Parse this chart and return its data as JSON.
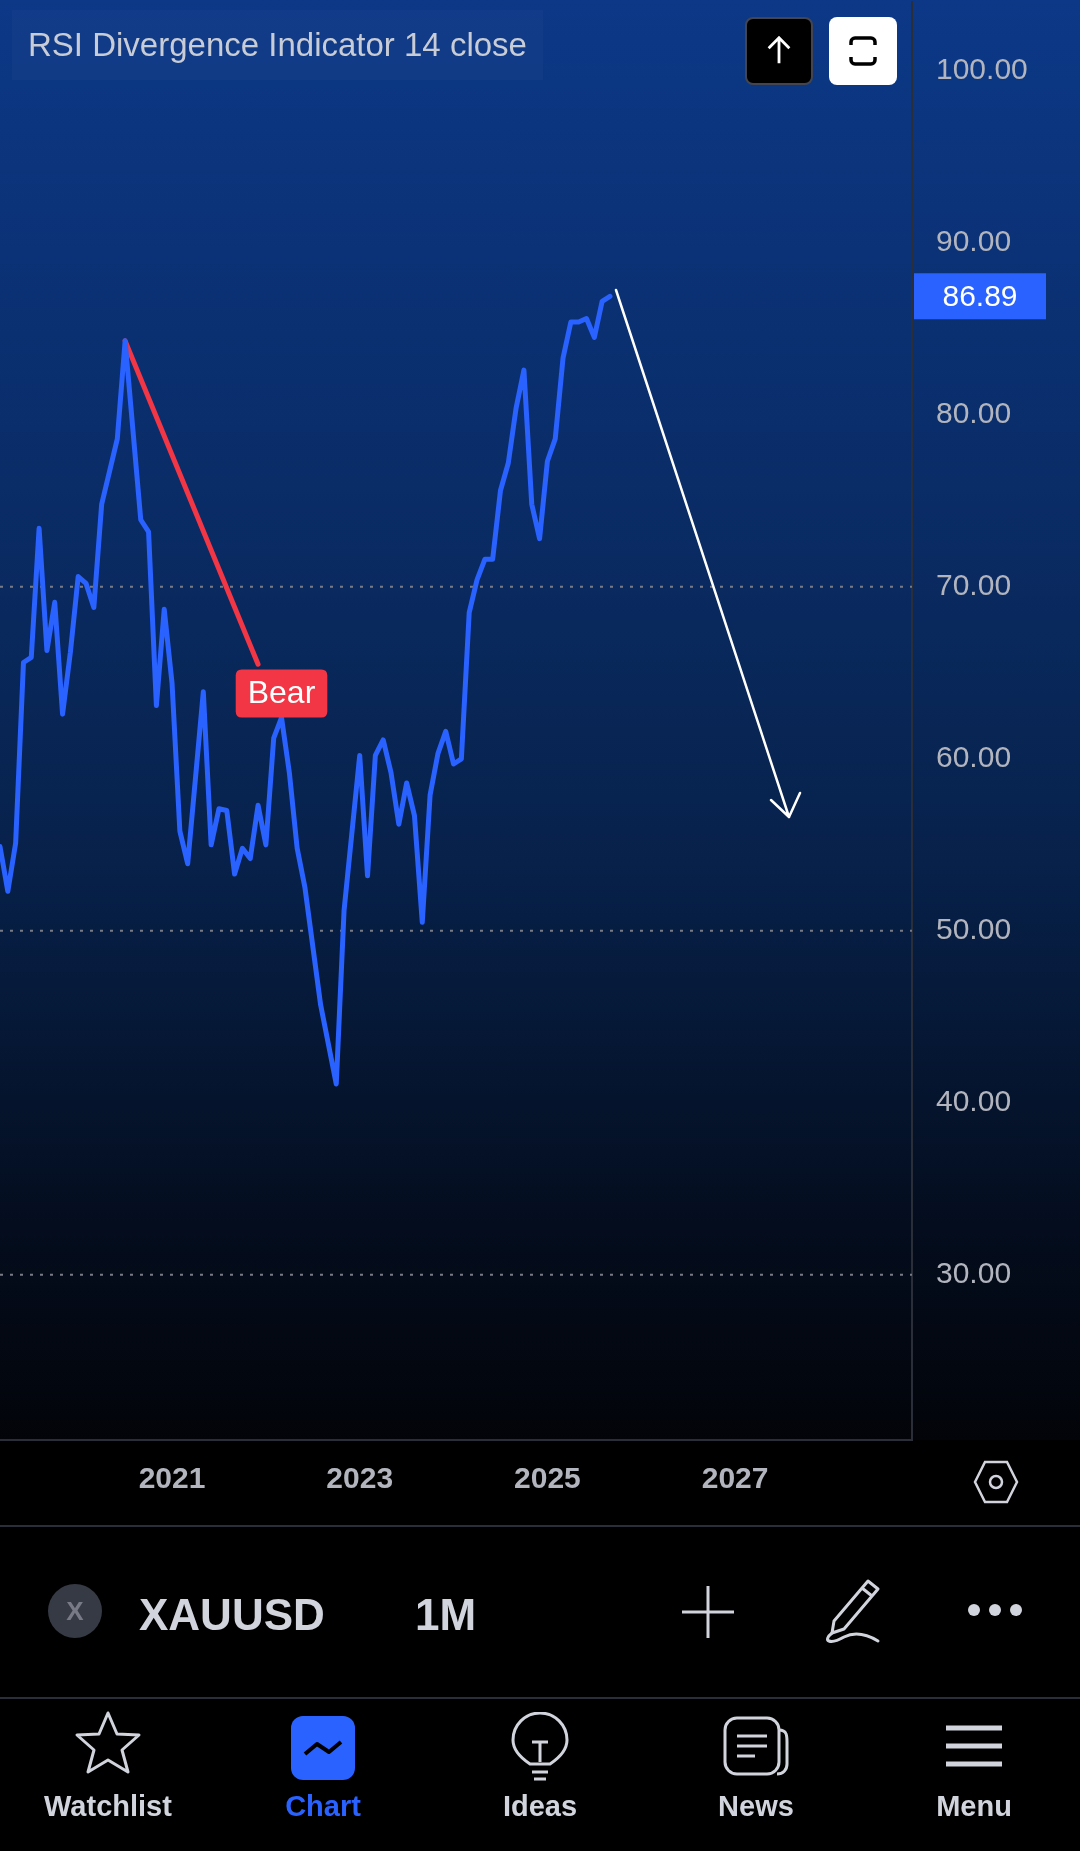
{
  "chart_data": {
    "type": "line",
    "title": "RSI Divergence Indicator 14 close",
    "x": [
      "2019-03",
      "2019-04",
      "2019-05",
      "2019-06",
      "2019-07",
      "2019-08",
      "2019-09",
      "2019-10",
      "2019-11",
      "2019-12",
      "2020-01",
      "2020-02",
      "2020-03",
      "2020-04",
      "2020-05",
      "2020-06",
      "2020-07",
      "2020-09",
      "2020-10",
      "2020-11",
      "2020-12",
      "2021-01",
      "2021-02",
      "2021-03",
      "2021-05",
      "2021-06",
      "2021-07",
      "2021-08",
      "2021-09",
      "2021-10",
      "2021-11",
      "2021-12",
      "2022-01",
      "2022-02",
      "2022-03",
      "2022-04",
      "2022-05",
      "2022-06",
      "2022-08",
      "2022-10",
      "2022-11",
      "2023-01",
      "2023-02",
      "2023-03",
      "2023-04",
      "2023-05",
      "2023-06",
      "2023-07",
      "2023-08",
      "2023-09",
      "2023-10",
      "2023-11",
      "2023-12",
      "2024-01",
      "2024-02",
      "2024-03",
      "2024-04",
      "2024-05",
      "2024-06",
      "2024-07",
      "2024-08",
      "2024-09",
      "2024-10",
      "2024-11",
      "2024-12",
      "2025-01",
      "2025-02",
      "2025-03",
      "2025-04",
      "2025-05",
      "2025-06",
      "2025-07",
      "2025-08",
      "2025-09"
    ],
    "xlim": [
      "2019-03",
      "2028-11-20"
    ],
    "xticks": [
      "2021",
      "2023",
      "2025",
      "2027"
    ],
    "ylim": [
      20.4,
      104
    ],
    "yticks": [
      {
        "value": 30,
        "label": "30.00"
      },
      {
        "value": 40,
        "label": "40.00"
      },
      {
        "value": 50,
        "label": "50.00"
      },
      {
        "value": 60,
        "label": "60.00"
      },
      {
        "value": 70,
        "label": "70.00"
      },
      {
        "value": 80,
        "label": "80.00"
      },
      {
        "value": 90,
        "label": "90.00"
      },
      {
        "value": 100,
        "label": "100.00"
      }
    ],
    "series": [
      {
        "color": "#2962ff",
        "values": [
          54.9,
          52.3,
          55.1,
          65.6,
          65.9,
          73.4,
          66.3,
          69.1,
          62.6,
          66.2,
          70.6,
          70.2,
          68.8,
          74.8,
          76.7,
          78.6,
          84.3,
          73.9,
          73.2,
          63.1,
          68.7,
          64.4,
          55.8,
          53.9,
          63.9,
          55.0,
          57.1,
          57.0,
          53.3,
          54.8,
          54.2,
          57.3,
          55.0,
          61.2,
          62.4,
          59.2,
          54.8,
          52.5,
          45.7,
          41.1,
          51.2,
          60.2,
          53.2,
          60.2,
          61.1,
          59.2,
          56.2,
          58.6,
          56.7,
          50.5,
          57.9,
          60.3,
          61.6,
          59.7,
          60.0,
          68.5,
          70.4,
          71.6,
          71.6,
          75.6,
          77.2,
          80.4,
          82.6,
          74.8,
          72.8,
          77.3,
          78.6,
          83.3,
          85.4,
          85.4,
          85.6,
          84.5,
          86.6,
          86.89
        ]
      },
      {
        "color": "#f23645",
        "x": [
          "2020-07",
          "2021-12"
        ],
        "values": [
          84.3,
          65.5
        ]
      }
    ],
    "ref_lines": [
      {
        "axis": "y",
        "value": 70,
        "line_style": "dotted",
        "color": "#787b86"
      },
      {
        "axis": "y",
        "value": 50,
        "line_style": "dotted",
        "color": "#787b86"
      },
      {
        "axis": "y",
        "value": 30,
        "line_style": "dotted",
        "color": "#787b86"
      }
    ],
    "annotations": [
      {
        "text": "Bear",
        "x": "2022-03",
        "y": 62.4
      },
      "86.89",
      "X",
      "XAUUSD",
      "1M",
      "Watchlist",
      "Chart",
      "Ideas",
      "News",
      "Menu"
    ]
  }
}
